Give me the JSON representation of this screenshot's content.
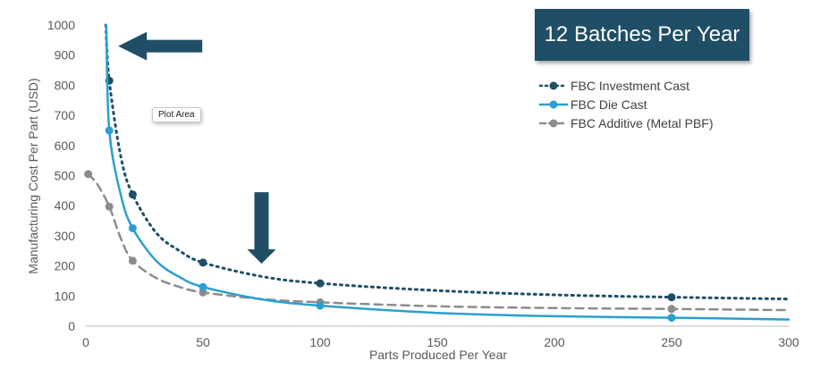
{
  "badge": {
    "title": "12 Batches Per Year"
  },
  "tooltip": {
    "text": "Plot Area"
  },
  "chart_data": {
    "type": "line",
    "title": "",
    "xlabel": "Parts Produced Per Year",
    "ylabel": "Manufacturing Cost Per Part (USD)",
    "xlim": [
      0,
      300
    ],
    "ylim": [
      0,
      1000
    ],
    "x_ticks": [
      0,
      50,
      100,
      150,
      200,
      250,
      300
    ],
    "y_ticks": [
      0,
      100,
      200,
      300,
      400,
      500,
      600,
      700,
      800,
      900,
      1000
    ],
    "grid": false,
    "legend_position": "top-right",
    "series": [
      {
        "name": "FBC Investment Cast",
        "color": "#1f4e66",
        "style": "dotted",
        "points": [
          [
            10,
            815
          ],
          [
            20,
            437
          ],
          [
            50,
            211
          ],
          [
            100,
            142
          ],
          [
            250,
            96
          ]
        ],
        "curve": [
          [
            8.5,
            1000
          ],
          [
            10,
            815
          ],
          [
            15,
            560
          ],
          [
            20,
            437
          ],
          [
            30,
            310
          ],
          [
            40,
            250
          ],
          [
            50,
            211
          ],
          [
            75,
            165
          ],
          [
            100,
            142
          ],
          [
            150,
            118
          ],
          [
            200,
            104
          ],
          [
            250,
            96
          ],
          [
            300,
            90
          ]
        ]
      },
      {
        "name": "FBC Die Cast",
        "color": "#2b9fcf",
        "style": "solid",
        "points": [
          [
            10,
            650
          ],
          [
            20,
            325
          ],
          [
            50,
            130
          ],
          [
            100,
            68
          ],
          [
            250,
            28
          ]
        ],
        "curve": [
          [
            8.7,
            1000
          ],
          [
            10,
            650
          ],
          [
            15,
            433
          ],
          [
            20,
            325
          ],
          [
            30,
            217
          ],
          [
            40,
            163
          ],
          [
            50,
            130
          ],
          [
            75,
            89
          ],
          [
            100,
            68
          ],
          [
            150,
            44
          ],
          [
            200,
            33
          ],
          [
            250,
            28
          ],
          [
            300,
            22
          ]
        ]
      },
      {
        "name": "FBC Additive (Metal PBF)",
        "color": "#8c8c8c",
        "style": "dashed",
        "points": [
          [
            1,
            505
          ],
          [
            10,
            397
          ],
          [
            20,
            217
          ],
          [
            50,
            112
          ],
          [
            100,
            79
          ],
          [
            250,
            57
          ]
        ],
        "curve": [
          [
            1,
            505
          ],
          [
            5,
            470
          ],
          [
            10,
            397
          ],
          [
            15,
            290
          ],
          [
            20,
            217
          ],
          [
            30,
            160
          ],
          [
            40,
            130
          ],
          [
            50,
            112
          ],
          [
            75,
            90
          ],
          [
            100,
            79
          ],
          [
            150,
            66
          ],
          [
            200,
            60
          ],
          [
            250,
            57
          ],
          [
            300,
            53
          ]
        ]
      }
    ],
    "annotations": [
      {
        "type": "arrow-left",
        "color": "#1f4e66",
        "target": [
          10,
          930
        ]
      },
      {
        "type": "arrow-down",
        "color": "#1f4e66",
        "target": [
          75,
          160
        ]
      }
    ]
  }
}
